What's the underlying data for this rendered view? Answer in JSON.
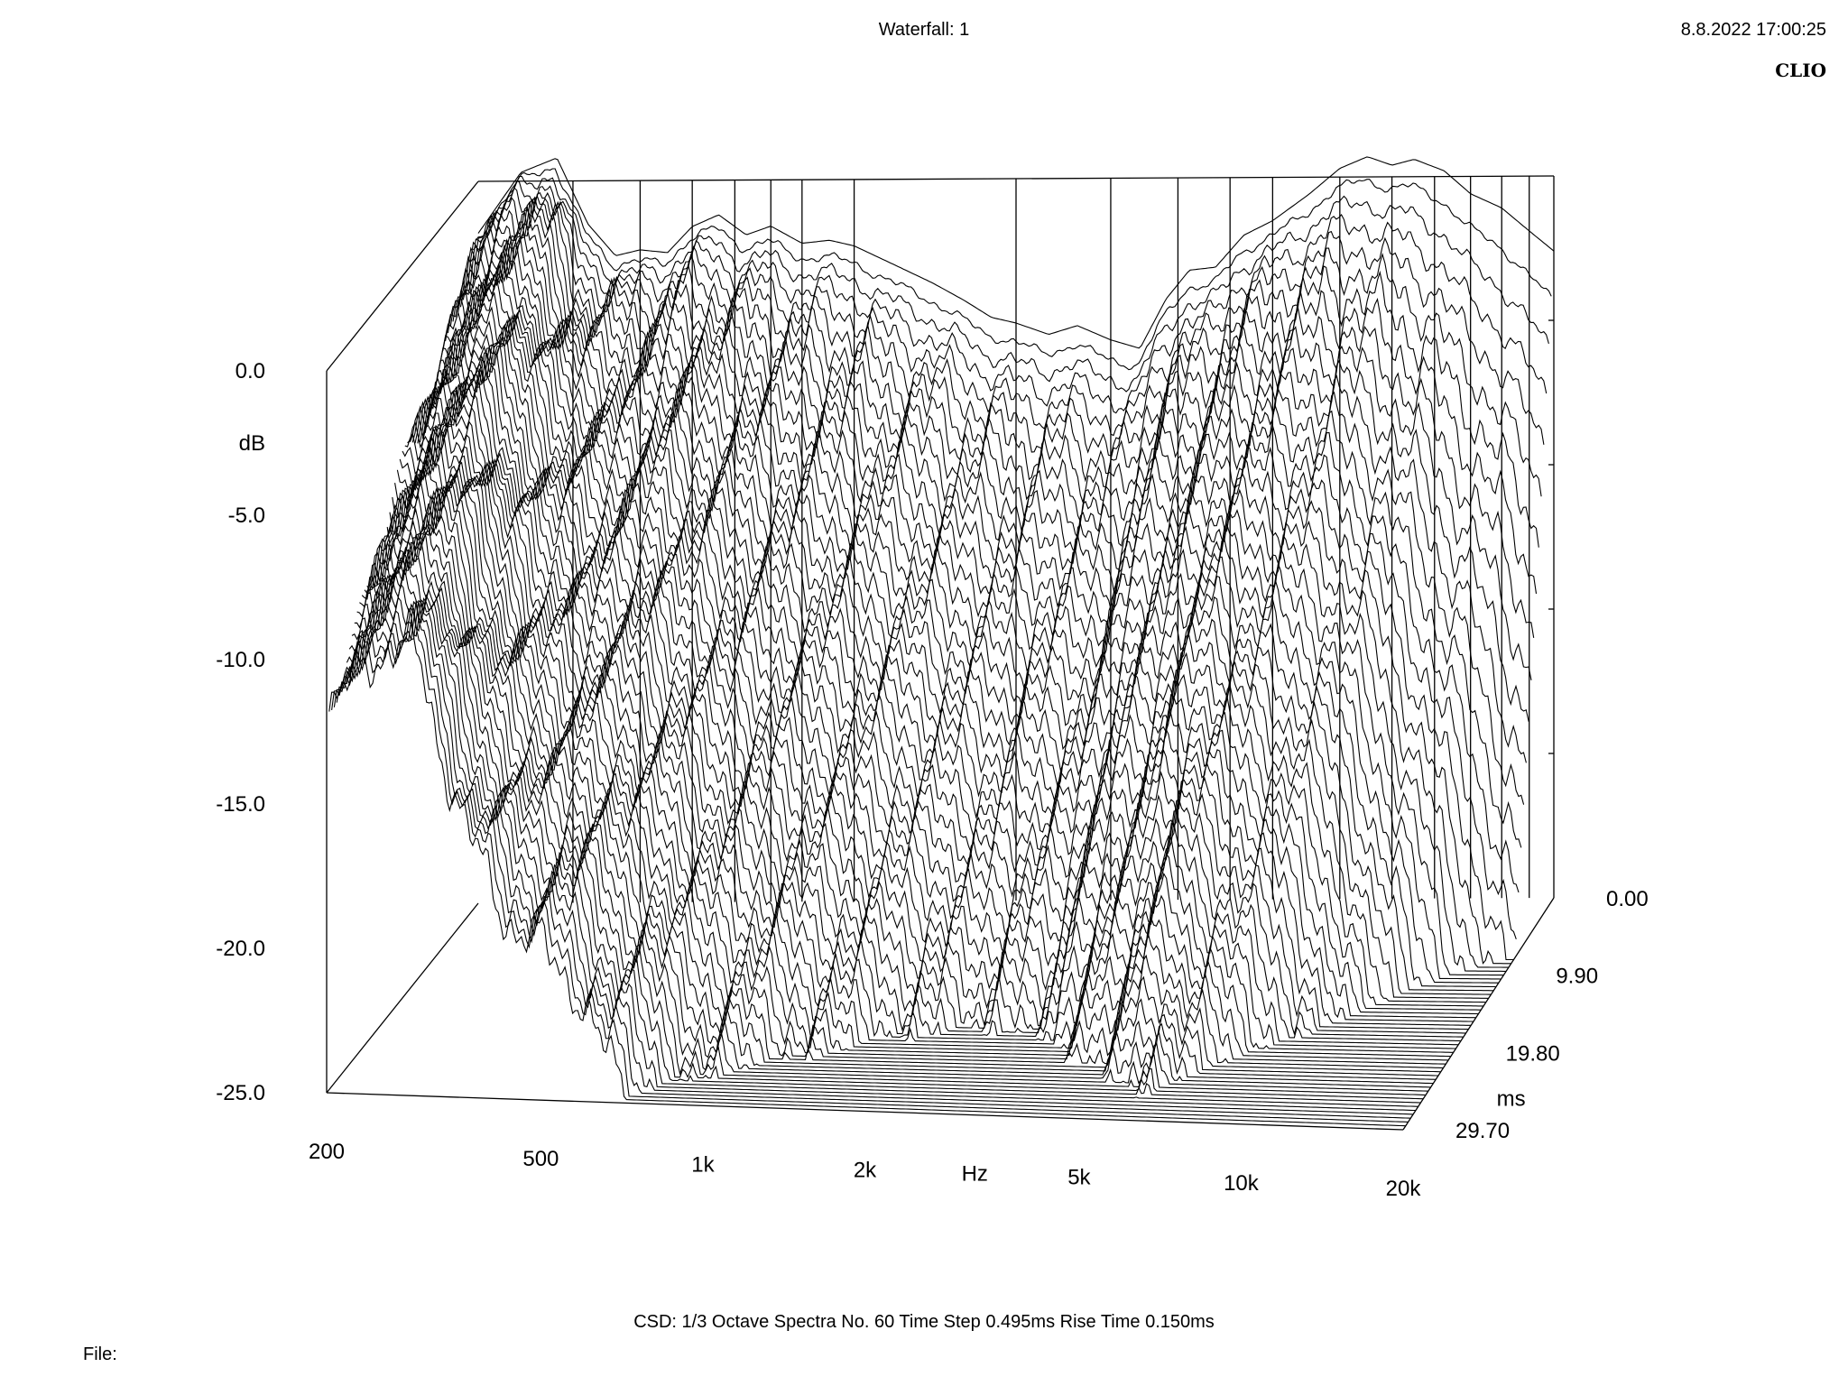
{
  "header": {
    "title": "Waterfall: 1",
    "timestamp": "8.8.2022 17:00:25",
    "brand": "CLIO"
  },
  "footer": {
    "info": "CSD:   1/3 Octave   Spectra No. 60   Time Step 0.495ms   Rise Time 0.150ms",
    "file_label": "File:"
  },
  "chart_data": {
    "type": "waterfall",
    "title": "Waterfall: 1",
    "x_axis": {
      "label": "Hz",
      "scale": "log",
      "range": [
        200,
        20000
      ],
      "ticks": [
        {
          "value": 200,
          "label": "200"
        },
        {
          "value": 500,
          "label": "500"
        },
        {
          "value": 1000,
          "label": "1k"
        },
        {
          "value": 2000,
          "label": "2k"
        },
        {
          "value": 5000,
          "label": "5k"
        },
        {
          "value": 10000,
          "label": "10k"
        },
        {
          "value": 20000,
          "label": "20k"
        }
      ]
    },
    "y_axis": {
      "label": "dB",
      "range": [
        -25,
        0
      ],
      "ticks": [
        {
          "value": 0,
          "label": "0.0"
        },
        {
          "value": -5,
          "label": "-5.0"
        },
        {
          "value": -10,
          "label": "-10.0"
        },
        {
          "value": -15,
          "label": "-15.0"
        },
        {
          "value": -20,
          "label": "-20.0"
        },
        {
          "value": -25,
          "label": "-25.0"
        }
      ]
    },
    "z_axis": {
      "label": "ms",
      "range": [
        0,
        29.7
      ],
      "ticks": [
        {
          "value": 0,
          "label": "0.00"
        },
        {
          "value": 9.9,
          "label": "9.90"
        },
        {
          "value": 19.8,
          "label": "19.80"
        },
        {
          "value": 29.7,
          "label": "29.70"
        }
      ]
    },
    "spectra_count": 60,
    "time_step_ms": 0.495,
    "rise_time_ms": 0.15,
    "smoothing": "1/3 Octave",
    "first_spectrum_db": [
      {
        "f": 200,
        "db": -1.8
      },
      {
        "f": 240,
        "db": 0.3
      },
      {
        "f": 280,
        "db": 0.8
      },
      {
        "f": 320,
        "db": -1.5
      },
      {
        "f": 360,
        "db": -2.6
      },
      {
        "f": 400,
        "db": -2.4
      },
      {
        "f": 450,
        "db": -2.5
      },
      {
        "f": 500,
        "db": -1.6
      },
      {
        "f": 560,
        "db": -1.2
      },
      {
        "f": 630,
        "db": -1.9
      },
      {
        "f": 700,
        "db": -1.6
      },
      {
        "f": 800,
        "db": -2.2
      },
      {
        "f": 900,
        "db": -2.1
      },
      {
        "f": 1000,
        "db": -2.3
      },
      {
        "f": 1200,
        "db": -3.0
      },
      {
        "f": 1400,
        "db": -3.6
      },
      {
        "f": 1600,
        "db": -4.2
      },
      {
        "f": 1800,
        "db": -4.8
      },
      {
        "f": 2000,
        "db": -5.0
      },
      {
        "f": 2300,
        "db": -5.4
      },
      {
        "f": 2600,
        "db": -5.1
      },
      {
        "f": 3000,
        "db": -5.6
      },
      {
        "f": 3400,
        "db": -5.9
      },
      {
        "f": 3800,
        "db": -4.2
      },
      {
        "f": 4200,
        "db": -3.2
      },
      {
        "f": 4700,
        "db": -3.1
      },
      {
        "f": 5300,
        "db": -2.0
      },
      {
        "f": 6000,
        "db": -1.5
      },
      {
        "f": 7000,
        "db": -0.6
      },
      {
        "f": 8000,
        "db": 0.3
      },
      {
        "f": 9000,
        "db": 0.7
      },
      {
        "f": 10000,
        "db": 0.4
      },
      {
        "f": 11000,
        "db": 0.6
      },
      {
        "f": 12500,
        "db": 0.2
      },
      {
        "f": 14000,
        "db": -0.6
      },
      {
        "f": 16000,
        "db": -1.1
      },
      {
        "f": 18000,
        "db": -1.9
      },
      {
        "f": 20000,
        "db": -2.6
      }
    ],
    "decay_db_per_ms": [
      {
        "f": 200,
        "rate": 0.35
      },
      {
        "f": 300,
        "rate": 0.35
      },
      {
        "f": 420,
        "rate": 0.55
      },
      {
        "f": 600,
        "rate": 0.7
      },
      {
        "f": 900,
        "rate": 0.9
      },
      {
        "f": 1500,
        "rate": 1.0
      },
      {
        "f": 2500,
        "rate": 1.1
      },
      {
        "f": 4000,
        "rate": 1.0
      },
      {
        "f": 6000,
        "rate": 0.9
      },
      {
        "f": 10000,
        "rate": 1.4
      },
      {
        "f": 15000,
        "rate": 2.2
      },
      {
        "f": 20000,
        "rate": 3.0
      }
    ]
  }
}
